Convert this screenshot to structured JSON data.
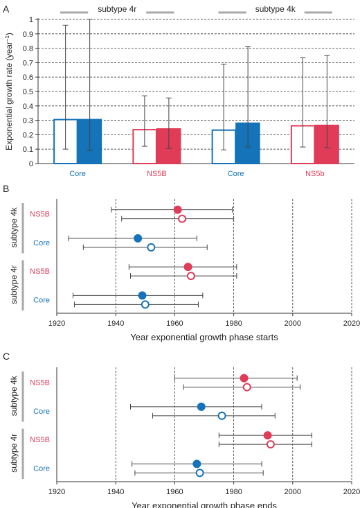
{
  "colors": {
    "core": "#1473b9",
    "ns5b": "#e03c58",
    "axis": "#333333",
    "bracket": "#a8a8a8",
    "grid": "#333333"
  },
  "chart_data": [
    {
      "panel_label": "A",
      "type": "bar",
      "groups": [
        {
          "title": "subtype 4r",
          "categories": [
            0,
            1
          ]
        },
        {
          "title": "subtype 4k",
          "categories": [
            2,
            3
          ]
        }
      ],
      "categories": [
        "Core",
        "NS5B",
        "Core",
        "NS5b"
      ],
      "category_colors": [
        "core",
        "ns5b",
        "core",
        "ns5b"
      ],
      "bar_styles": [
        "open",
        "filled"
      ],
      "values": [
        [
          0.305,
          0.305
        ],
        [
          0.235,
          0.24
        ],
        [
          0.232,
          0.28
        ],
        [
          0.262,
          0.265
        ]
      ],
      "error_low": [
        [
          0.1,
          0.09
        ],
        [
          0.12,
          0.105
        ],
        [
          0.095,
          0.115
        ],
        [
          0.115,
          0.11
        ]
      ],
      "error_high": [
        [
          0.96,
          1.0
        ],
        [
          0.47,
          0.455
        ],
        [
          0.69,
          0.81
        ],
        [
          0.735,
          0.75
        ]
      ],
      "ylabel_main": "Exponential growth rate (year",
      "ylabel_sup": "−1",
      "ylabel_close": ")",
      "ylim": [
        0,
        1
      ],
      "yticks": [
        "0",
        "0.1",
        "0.2",
        "0.3",
        "0.4",
        "0.5",
        "0.6",
        "0.7",
        "0.8",
        "0.9",
        "1"
      ],
      "grid": "dashed horizontal"
    },
    {
      "panel_label": "B",
      "type": "scatter",
      "xlabel": "Year exponential growth phase starts",
      "xlim": [
        1920,
        2020
      ],
      "xticks": [
        "1920",
        "1940",
        "1960",
        "1980",
        "2000",
        "2020"
      ],
      "grid": "dashed vertical",
      "groups": [
        {
          "title": "subtype 4k",
          "rows": [
            {
              "label": "NS5B",
              "color": "ns5b",
              "points": [
                {
                  "style": "filled",
                  "x": 1961,
                  "low": 1938.5,
                  "high": 1979.5
                },
                {
                  "style": "open",
                  "x": 1962.5,
                  "low": 1942,
                  "high": 1980
                }
              ]
            },
            {
              "label": "Core",
              "color": "core",
              "points": [
                {
                  "style": "filled",
                  "x": 1947.5,
                  "low": 1924,
                  "high": 1967.5
                },
                {
                  "style": "open",
                  "x": 1952,
                  "low": 1929,
                  "high": 1971
                }
              ]
            }
          ]
        },
        {
          "title": "subtype 4r",
          "rows": [
            {
              "label": "NS5B",
              "color": "ns5b",
              "points": [
                {
                  "style": "filled",
                  "x": 1964.5,
                  "low": 1944.5,
                  "high": 1981
                },
                {
                  "style": "open",
                  "x": 1965.5,
                  "low": 1945,
                  "high": 1981
                }
              ]
            },
            {
              "label": "Core",
              "color": "core",
              "points": [
                {
                  "style": "filled",
                  "x": 1949,
                  "low": 1925.5,
                  "high": 1969.5
                },
                {
                  "style": "open",
                  "x": 1950,
                  "low": 1926,
                  "high": 1968
                }
              ]
            }
          ]
        }
      ]
    },
    {
      "panel_label": "C",
      "type": "scatter",
      "xlabel": "Year exponential growth phase ends",
      "xlim": [
        1920,
        2020
      ],
      "xticks": [
        "1920",
        "1940",
        "1960",
        "1980",
        "2000",
        "2020"
      ],
      "grid": "dashed vertical",
      "groups": [
        {
          "title": "subtype 4k",
          "rows": [
            {
              "label": "NS5B",
              "color": "ns5b",
              "points": [
                {
                  "style": "filled",
                  "x": 1983.5,
                  "low": 1960,
                  "high": 2001.5
                },
                {
                  "style": "open",
                  "x": 1984.5,
                  "low": 1963,
                  "high": 2002.5
                }
              ]
            },
            {
              "label": "Core",
              "color": "core",
              "points": [
                {
                  "style": "filled",
                  "x": 1969,
                  "low": 1945,
                  "high": 1989.5
                },
                {
                  "style": "open",
                  "x": 1976,
                  "low": 1952.5,
                  "high": 1994
                }
              ]
            }
          ]
        },
        {
          "title": "subtype 4r",
          "rows": [
            {
              "label": "NS5B",
              "color": "ns5b",
              "points": [
                {
                  "style": "filled",
                  "x": 1991.5,
                  "low": 1975,
                  "high": 2006.5
                },
                {
                  "style": "open",
                  "x": 1992.5,
                  "low": 1975,
                  "high": 2006.5
                }
              ]
            },
            {
              "label": "Core",
              "color": "core",
              "points": [
                {
                  "style": "filled",
                  "x": 1967.5,
                  "low": 1945.5,
                  "high": 1989.5
                },
                {
                  "style": "open",
                  "x": 1968.5,
                  "low": 1946.5,
                  "high": 1990
                }
              ]
            }
          ]
        }
      ]
    }
  ]
}
